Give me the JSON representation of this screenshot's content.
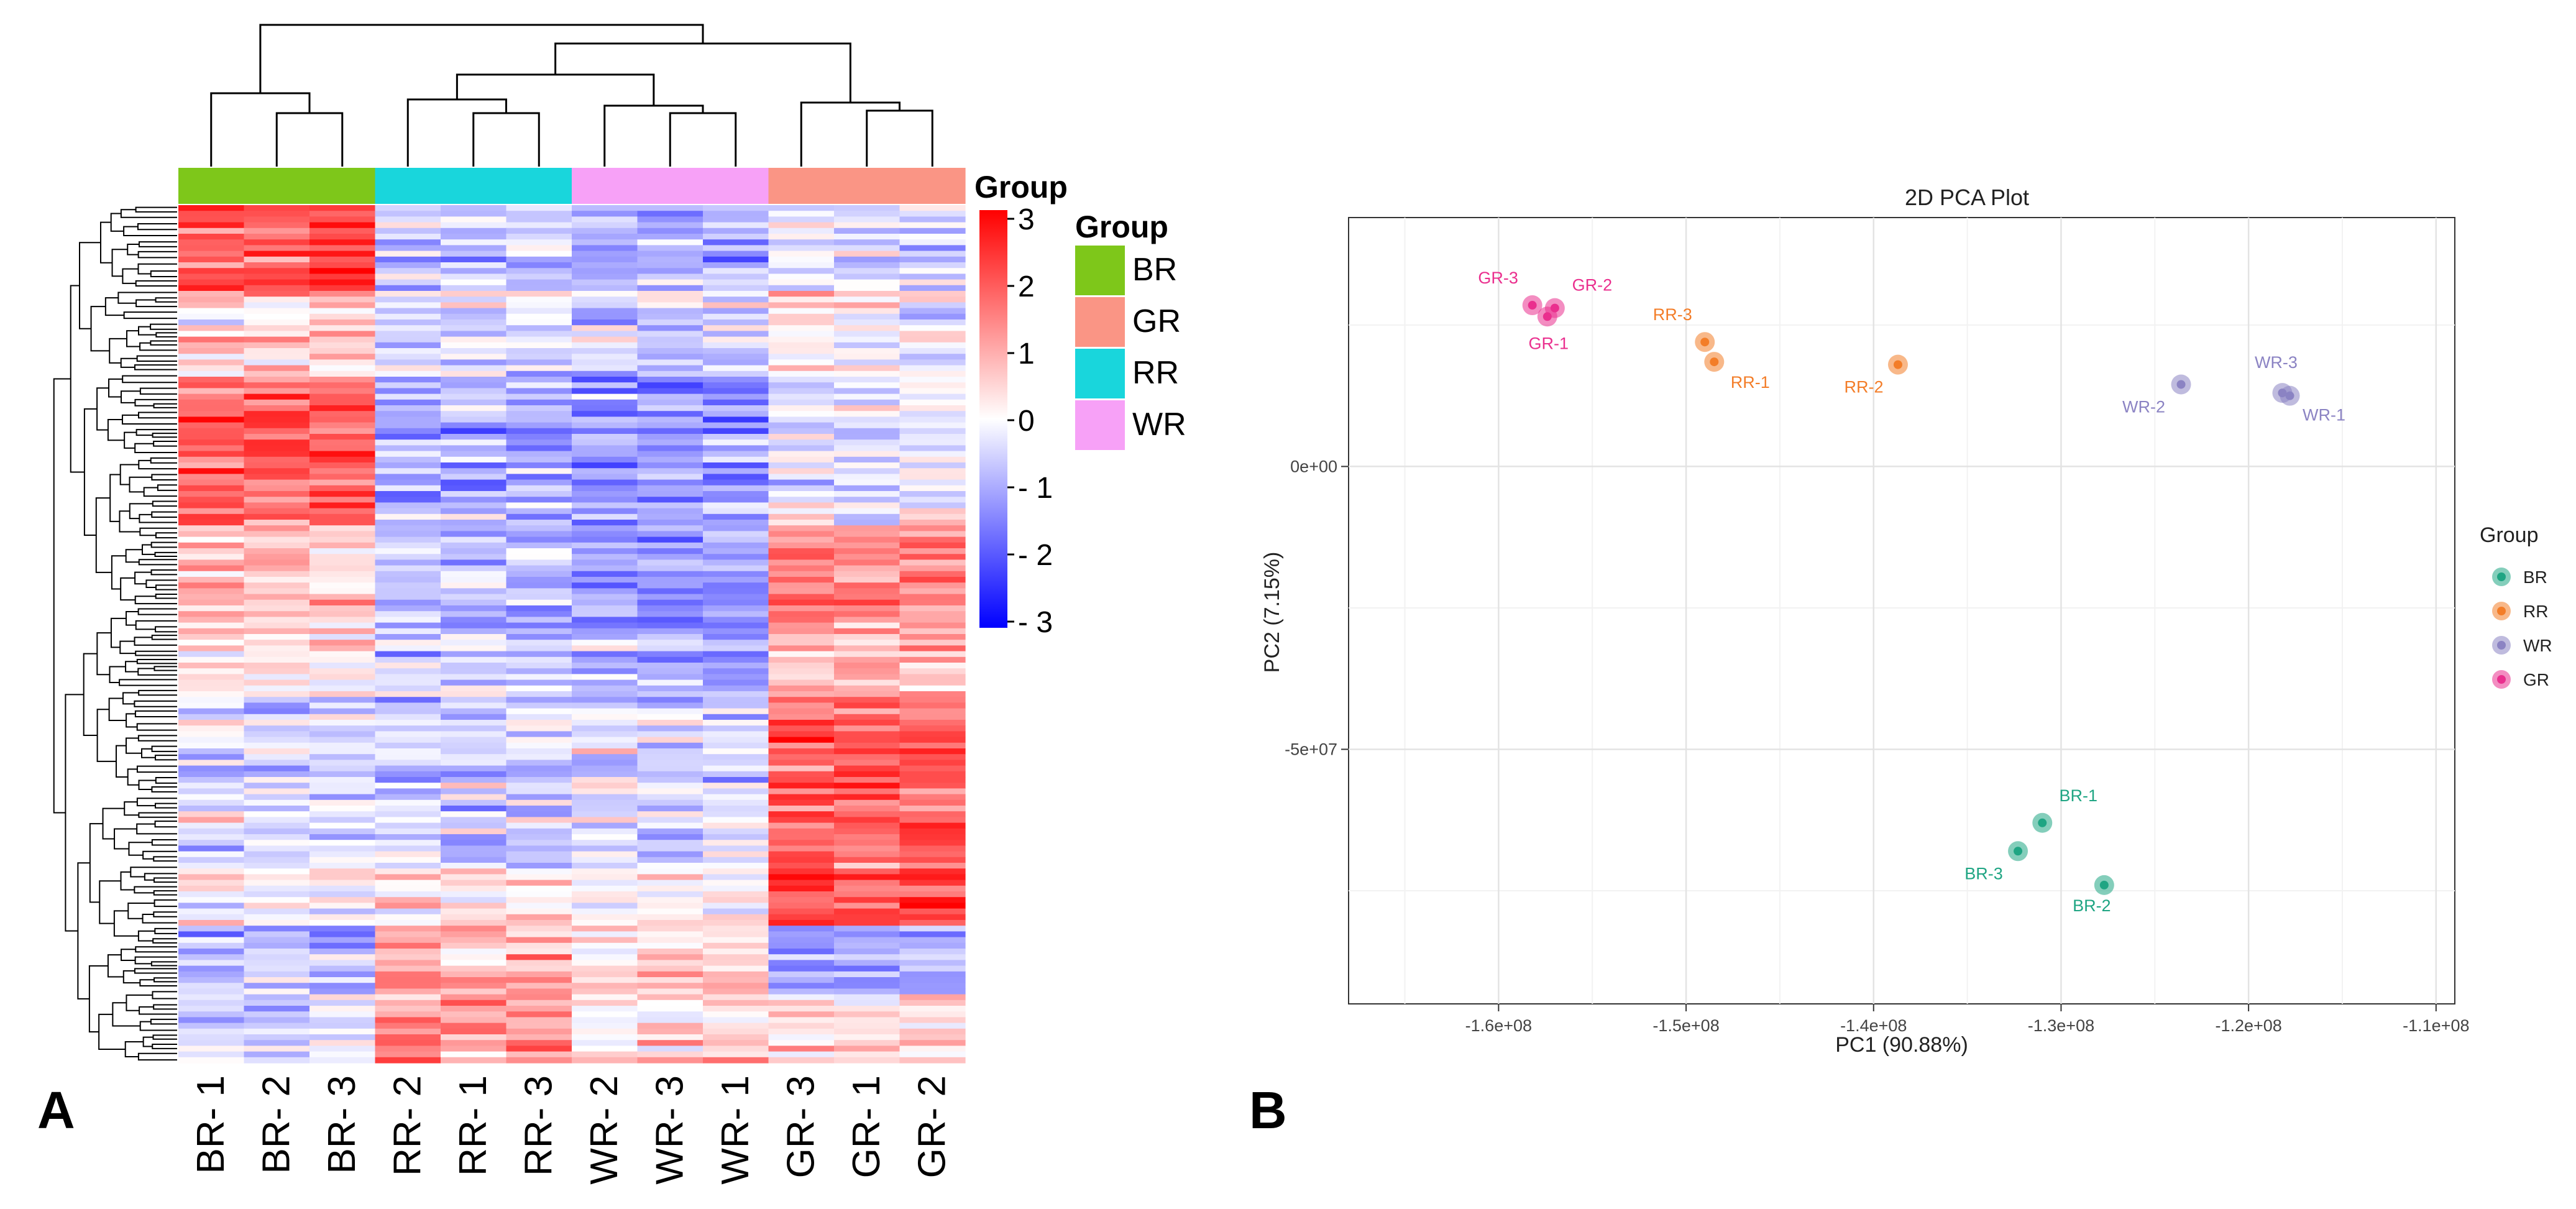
{
  "panel_labels": {
    "a": "A",
    "b": "B"
  },
  "chart_data": [
    {
      "type": "heatmap",
      "panel": "A",
      "title": "",
      "samples": [
        "BR- 1",
        "BR- 2",
        "BR- 3",
        "RR- 2",
        "RR- 1",
        "RR- 3",
        "WR- 2",
        "WR- 3",
        "WR- 1",
        "GR- 3",
        "GR- 1",
        "GR- 2"
      ],
      "sample_groups": [
        "BR",
        "BR",
        "BR",
        "RR",
        "RR",
        "RR",
        "WR",
        "WR",
        "WR",
        "GR",
        "GR",
        "GR"
      ],
      "color_scale": {
        "title": "Group",
        "min": -3,
        "max": 3,
        "ticks": [
          "3",
          "2",
          "1",
          "0",
          "- 1",
          "- 2",
          "- 3"
        ],
        "colors": {
          "low": "#0000ff",
          "mid": "#ffffff",
          "high": "#ff0000"
        }
      },
      "group_legend": {
        "title": "Group",
        "items": [
          {
            "label": "BR",
            "color": "#7ec71a"
          },
          {
            "label": "GR",
            "color": "#fa9585"
          },
          {
            "label": "RR",
            "color": "#19d6dc"
          },
          {
            "label": "WR",
            "color": "#f7a1f7"
          }
        ]
      }
    },
    {
      "type": "scatter",
      "panel": "B",
      "title": "2D PCA Plot",
      "xlabel": "PC1 (90.88%)",
      "ylabel": "PC2 (7.15%)",
      "xlim": [
        -168000000,
        -109000000
      ],
      "ylim": [
        -95000000,
        44000000
      ],
      "xticks": [
        {
          "v": -160000000,
          "label": "-1.6e+08"
        },
        {
          "v": -150000000,
          "label": "-1.5e+08"
        },
        {
          "v": -140000000,
          "label": "-1.4e+08"
        },
        {
          "v": -130000000,
          "label": "-1.3e+08"
        },
        {
          "v": -120000000,
          "label": "-1.2e+08"
        },
        {
          "v": -110000000,
          "label": "-1.1e+08"
        }
      ],
      "yticks": [
        {
          "v": 0,
          "label": "0e+00"
        },
        {
          "v": -50000000,
          "label": "-5e+07"
        }
      ],
      "grid": true,
      "legend_title": "Group",
      "series": [
        {
          "name": "BR",
          "color": "#1fa583",
          "points": [
            {
              "label": "BR-1",
              "x": -131000000,
              "y": -63000000
            },
            {
              "label": "BR-2",
              "x": -127700000,
              "y": -74000000
            },
            {
              "label": "BR-3",
              "x": -132300000,
              "y": -68000000
            }
          ]
        },
        {
          "name": "RR",
          "color": "#f37d28",
          "points": [
            {
              "label": "RR-1",
              "x": -148500000,
              "y": 18500000
            },
            {
              "label": "RR-2",
              "x": -138700000,
              "y": 18000000
            },
            {
              "label": "RR-3",
              "x": -149000000,
              "y": 22000000
            }
          ]
        },
        {
          "name": "WR",
          "color": "#8b83c3",
          "points": [
            {
              "label": "WR-1",
              "x": -117800000,
              "y": 12500000
            },
            {
              "label": "WR-2",
              "x": -123600000,
              "y": 14500000
            },
            {
              "label": "WR-3",
              "x": -118200000,
              "y": 13000000
            }
          ]
        },
        {
          "name": "GR",
          "color": "#ea2f8e",
          "points": [
            {
              "label": "GR-1",
              "x": -157400000,
              "y": 26500000
            },
            {
              "label": "GR-2",
              "x": -157000000,
              "y": 28000000
            },
            {
              "label": "GR-3",
              "x": -158200000,
              "y": 28500000
            }
          ]
        }
      ]
    }
  ]
}
